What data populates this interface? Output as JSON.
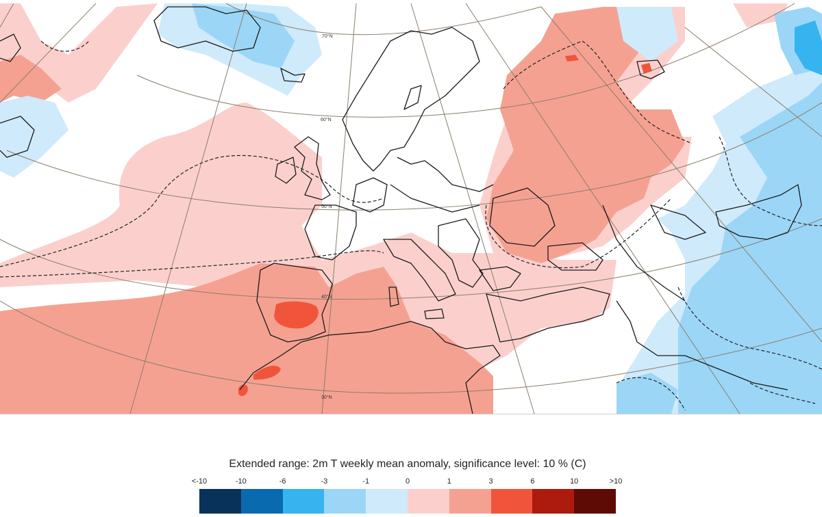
{
  "title": "Extended range: 2m T weekly mean anomaly, significance level: 10 % (C)",
  "lat_labels": [
    "70°N",
    "60°N",
    "50°N",
    "40°N",
    "30°N"
  ],
  "colors": {
    "land_lines": "#1a1a1a",
    "grid": "#8b7d6b",
    "ocean_bg": "#ffffff"
  },
  "legend": {
    "ticks": [
      "<-10",
      "-10",
      "-6",
      "-3",
      "-1",
      "0",
      "1",
      "3",
      "6",
      "10",
      ">10"
    ],
    "swatches": [
      {
        "range": "<-10 to -10",
        "color": "#08325a"
      },
      {
        "range": "-10 to -6",
        "color": "#0a6ab0"
      },
      {
        "range": "-6 to -3",
        "color": "#36b4f0"
      },
      {
        "range": "-3 to -1",
        "color": "#9bd6f7"
      },
      {
        "range": "-1 to 0",
        "color": "#cfeafa"
      },
      {
        "range": "0 to 1",
        "color": "#fbd0cc"
      },
      {
        "range": "1 to 3",
        "color": "#f5a192"
      },
      {
        "range": "3 to 6",
        "color": "#f0553c"
      },
      {
        "range": "6 to 10",
        "color": "#ad1a0e"
      },
      {
        "range": "10 to >10",
        "color": "#5e0b06"
      }
    ]
  }
}
